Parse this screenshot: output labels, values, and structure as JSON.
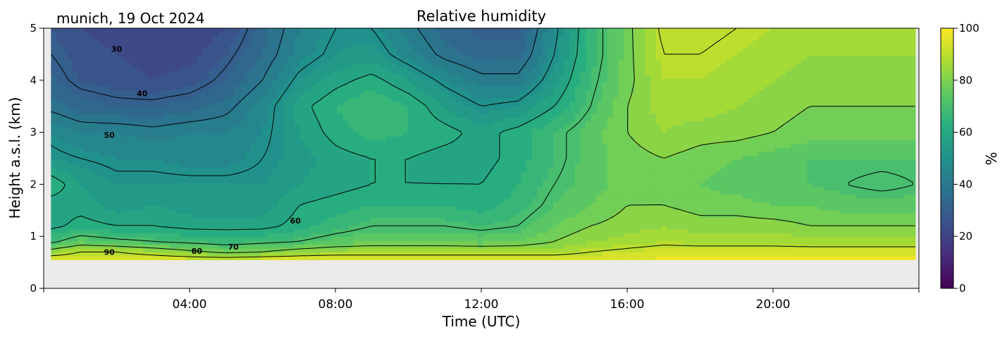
{
  "chart_data": {
    "type": "heatmap",
    "title": "Relative humidity",
    "subtitle": "munich, 19 Oct 2024",
    "xlabel": "Time (UTC)",
    "ylabel": "Height a.s.l. (km)",
    "xlim": [
      0,
      24
    ],
    "ylim": [
      0,
      5
    ],
    "x_ticks": [
      4,
      8,
      12,
      16,
      20
    ],
    "x_tick_labels": [
      "04:00",
      "08:00",
      "12:00",
      "16:00",
      "20:00"
    ],
    "y_ticks": [
      0,
      1,
      2,
      3,
      4,
      5
    ],
    "y_tick_labels": [
      "0",
      "1",
      "2",
      "3",
      "4",
      "5"
    ],
    "data_ylim_bottom_km": 0.55,
    "colorbar": {
      "label": "%",
      "range": [
        0,
        100
      ],
      "ticks": [
        0,
        20,
        40,
        60,
        80,
        100
      ],
      "tick_labels": [
        "0",
        "20",
        "40",
        "60",
        "80",
        "100"
      ],
      "colormap": "viridis"
    },
    "no_data_color": "#ebebeb",
    "time_h": [
      0.2,
      1,
      2,
      3,
      4,
      5,
      6,
      7,
      8,
      9,
      10,
      11,
      12,
      13,
      14,
      15,
      16,
      17,
      18,
      19,
      20,
      21,
      22,
      23,
      23.9
    ],
    "heights_km": [
      0.55,
      0.7,
      0.9,
      1.2,
      1.6,
      2.0,
      2.5,
      3.0,
      3.5,
      4.0,
      4.5,
      5.0
    ],
    "contour_levels": [
      30,
      40,
      50,
      60,
      70,
      80,
      90
    ],
    "contour_labels": [
      {
        "text": "30",
        "x": 2.0,
        "y": 4.6
      },
      {
        "text": "40",
        "x": 2.7,
        "y": 3.75
      },
      {
        "text": "50",
        "x": 1.8,
        "y": 2.95
      },
      {
        "text": "60",
        "x": 6.9,
        "y": 1.3
      },
      {
        "text": "70",
        "x": 5.2,
        "y": 0.8
      },
      {
        "text": "80",
        "x": 4.2,
        "y": 0.72
      },
      {
        "text": "90",
        "x": 1.8,
        "y": 0.7
      }
    ],
    "rh_values": [
      [
        96,
        96,
        96,
        96,
        95,
        95,
        96,
        96,
        96,
        96,
        96,
        96,
        96,
        96,
        96,
        96,
        96,
        97,
        97,
        97,
        97,
        97,
        97,
        97,
        97
      ],
      [
        84,
        90,
        90,
        86,
        82,
        78,
        80,
        84,
        86,
        86,
        86,
        86,
        86,
        86,
        86,
        90,
        92,
        94,
        94,
        94,
        94,
        94,
        94,
        94,
        94
      ],
      [
        68,
        75,
        72,
        70,
        68,
        66,
        68,
        70,
        74,
        76,
        76,
        76,
        75,
        76,
        80,
        84,
        86,
        88,
        87,
        87,
        87,
        86,
        86,
        86,
        86
      ],
      [
        58,
        62,
        60,
        60,
        58,
        58,
        58,
        62,
        66,
        70,
        70,
        70,
        68,
        70,
        76,
        80,
        82,
        84,
        82,
        82,
        82,
        80,
        80,
        80,
        80
      ],
      [
        57,
        58,
        54,
        56,
        54,
        54,
        54,
        60,
        62,
        64,
        64,
        64,
        62,
        66,
        72,
        76,
        80,
        80,
        78,
        78,
        76,
        76,
        74,
        74,
        74
      ],
      [
        64,
        56,
        52,
        52,
        52,
        52,
        52,
        56,
        58,
        60,
        60,
        60,
        60,
        64,
        70,
        74,
        78,
        78,
        76,
        74,
        72,
        72,
        70,
        68,
        70
      ],
      [
        52,
        50,
        48,
        48,
        46,
        46,
        50,
        54,
        58,
        60,
        60,
        58,
        58,
        62,
        68,
        74,
        78,
        80,
        78,
        76,
        74,
        72,
        72,
        72,
        72
      ],
      [
        48,
        44,
        44,
        42,
        44,
        44,
        48,
        56,
        62,
        66,
        64,
        62,
        58,
        62,
        68,
        74,
        80,
        84,
        82,
        82,
        80,
        78,
        78,
        78,
        78
      ],
      [
        38,
        34,
        32,
        32,
        34,
        38,
        46,
        58,
        64,
        68,
        64,
        56,
        50,
        52,
        60,
        70,
        80,
        86,
        86,
        84,
        82,
        80,
        80,
        80,
        80
      ],
      [
        33,
        28,
        26,
        24,
        26,
        32,
        40,
        52,
        58,
        62,
        56,
        48,
        42,
        42,
        54,
        68,
        78,
        88,
        88,
        86,
        84,
        82,
        82,
        82,
        82
      ],
      [
        30,
        26,
        24,
        22,
        22,
        28,
        36,
        46,
        52,
        54,
        46,
        38,
        34,
        34,
        50,
        66,
        78,
        90,
        90,
        88,
        86,
        84,
        84,
        84,
        84
      ],
      [
        28,
        24,
        22,
        20,
        20,
        24,
        34,
        44,
        50,
        50,
        42,
        34,
        30,
        30,
        48,
        66,
        78,
        92,
        92,
        90,
        88,
        86,
        86,
        86,
        86
      ]
    ]
  }
}
